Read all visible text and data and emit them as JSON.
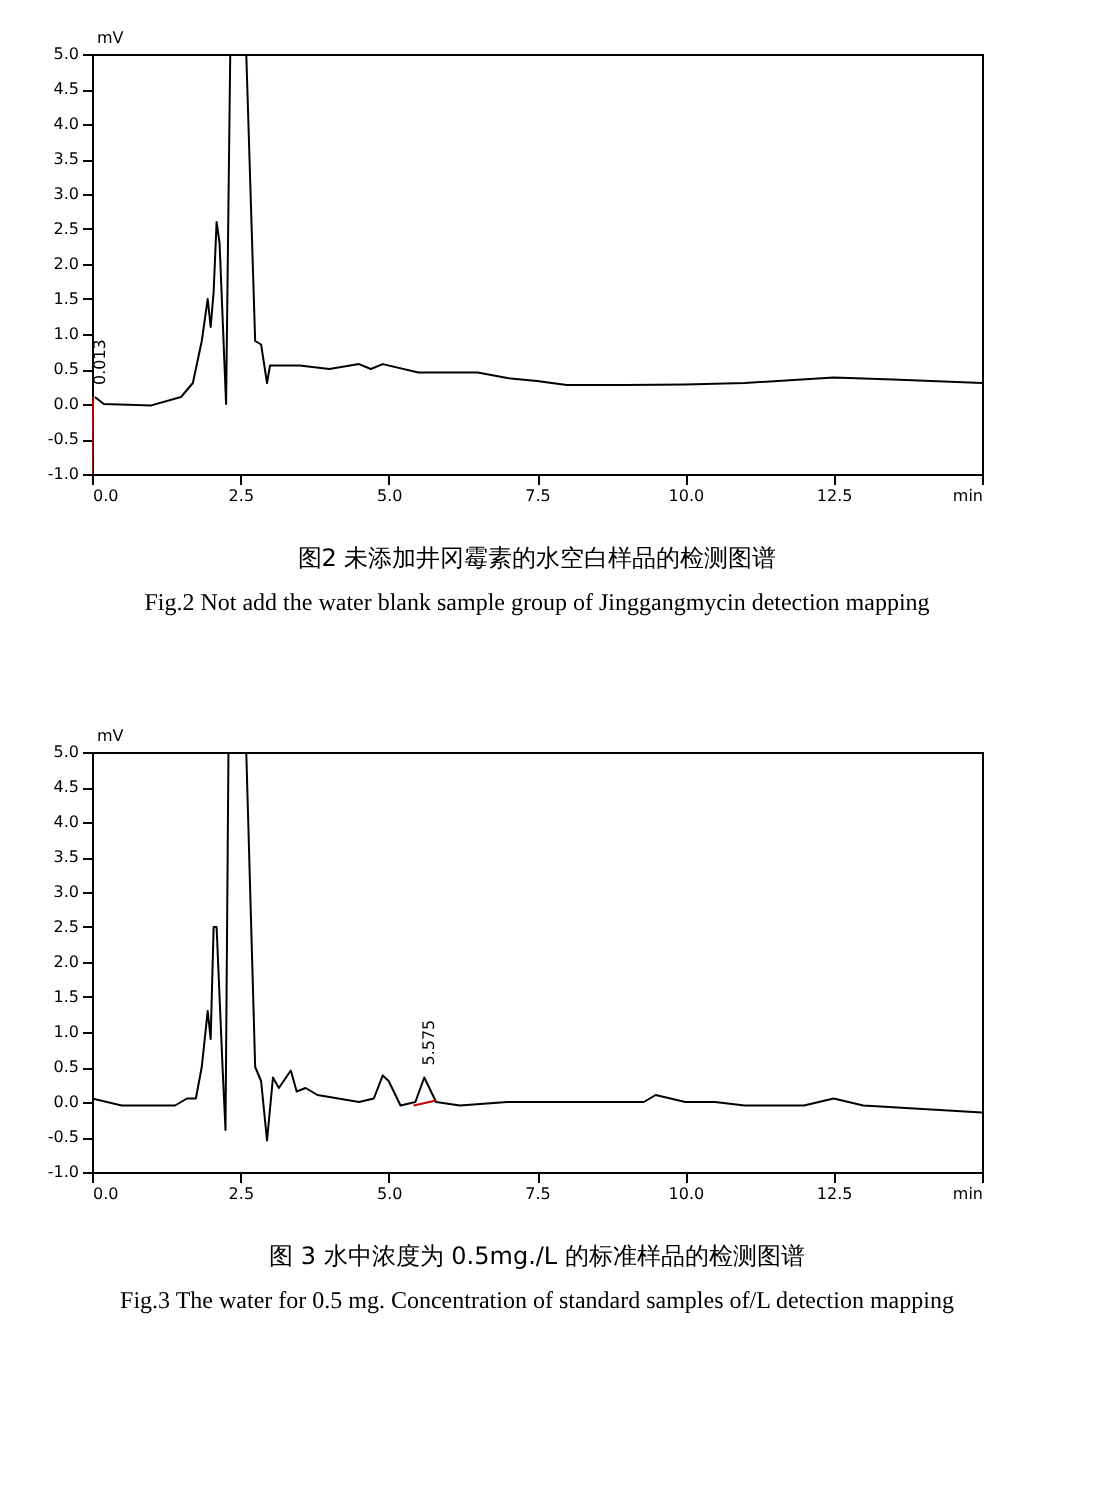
{
  "chart_data": [
    {
      "type": "line",
      "title": "图2  未添加井冈霉素的水空白样品的检测图谱",
      "subtitle": "Fig.2 Not add the water blank sample group of Jinggangmycin detection mapping",
      "ylabel": "mV",
      "xlim": [
        0,
        15
      ],
      "ylim": [
        -1,
        5
      ],
      "xticks": [
        {
          "value": 0,
          "label": "0.0"
        },
        2.5,
        {
          "value": 5,
          "label": "5.0"
        },
        7.5,
        {
          "value": 10,
          "label": "10.0"
        },
        12.5,
        {
          "value": 15,
          "label": "min"
        }
      ],
      "yticks": [
        {
          "value": -1,
          "label": "-1.0"
        },
        -0.5,
        {
          "value": 0,
          "label": "0.0"
        },
        0.5,
        {
          "value": 1,
          "label": "1.0"
        },
        1.5,
        {
          "value": 2,
          "label": "2.0"
        },
        2.5,
        {
          "value": 3,
          "label": "3.0"
        },
        3.5,
        {
          "value": 4,
          "label": "4.0"
        },
        4.5,
        {
          "value": 5,
          "label": "5.0"
        }
      ],
      "grid": false,
      "marker": "none",
      "line_style": "solid",
      "annotations": [
        {
          "text": "0.013",
          "x": 0.05,
          "y": 0.1
        }
      ],
      "series": [
        {
          "color": "#000000",
          "x": [
            0.05,
            0.2,
            1.0,
            1.5,
            1.7,
            1.85,
            1.95,
            2.0,
            2.05,
            2.1,
            2.15,
            2.26,
            2.33,
            2.6,
            2.75,
            2.85,
            2.95,
            3.0,
            3.5,
            4.0,
            4.5,
            4.7,
            4.9,
            5.5,
            6.5,
            7.0,
            7.5,
            8.0,
            9.0,
            10.0,
            11.0,
            12.5,
            13.5,
            15.0
          ],
          "values": [
            0.1,
            0.0,
            -0.02,
            0.1,
            0.3,
            0.9,
            1.5,
            1.1,
            1.6,
            2.6,
            2.3,
            0.0,
            5.0,
            5.0,
            0.9,
            0.85,
            0.3,
            0.55,
            0.55,
            0.5,
            0.57,
            0.5,
            0.57,
            0.45,
            0.45,
            0.37,
            0.33,
            0.27,
            0.27,
            0.28,
            0.3,
            0.38,
            0.35,
            0.3
          ]
        },
        {
          "color": "#c00000",
          "x": [
            0.0,
            0.02
          ],
          "values": [
            -1.0,
            0.1
          ]
        }
      ]
    },
    {
      "type": "line",
      "title": "图 3  水中浓度为 0.5mg./L 的标准样品的检测图谱",
      "subtitle": "Fig.3 The water for 0.5 mg. Concentration of standard samples of/L detection mapping",
      "ylabel": "mV",
      "xlim": [
        0,
        15
      ],
      "ylim": [
        -1,
        5
      ],
      "xticks": [
        {
          "value": 0,
          "label": "0.0"
        },
        2.5,
        {
          "value": 5,
          "label": "5.0"
        },
        7.5,
        {
          "value": 10,
          "label": "10.0"
        },
        12.5,
        {
          "value": 15,
          "label": "min"
        }
      ],
      "yticks": [
        {
          "value": -1,
          "label": "-1.0"
        },
        -0.5,
        {
          "value": 0,
          "label": "0.0"
        },
        0.5,
        {
          "value": 1,
          "label": "1.0"
        },
        1.5,
        {
          "value": 2,
          "label": "2.0"
        },
        2.5,
        {
          "value": 3,
          "label": "3.0"
        },
        3.5,
        {
          "value": 4,
          "label": "4.0"
        },
        4.5,
        {
          "value": 5,
          "label": "5.0"
        }
      ],
      "grid": false,
      "marker": "none",
      "line_style": "solid",
      "annotations": [
        {
          "text": "5.575",
          "x": 5.6,
          "y": 0.35
        }
      ],
      "series": [
        {
          "color": "#000000",
          "x": [
            0.0,
            0.5,
            1.4,
            1.6,
            1.75,
            1.85,
            1.95,
            2.0,
            2.05,
            2.1,
            2.2,
            2.25,
            2.3,
            2.6,
            2.75,
            2.85,
            2.95,
            3.05,
            3.15,
            3.35,
            3.45,
            3.6,
            3.8,
            4.5,
            4.75,
            4.9,
            5.0,
            5.2,
            5.45,
            5.6,
            5.8,
            6.2,
            7.0,
            8.0,
            9.3,
            9.5,
            10.0,
            10.5,
            11.0,
            12.0,
            12.5,
            13.0,
            14.0,
            15.0
          ],
          "values": [
            0.05,
            -0.05,
            -0.05,
            0.05,
            0.05,
            0.5,
            1.3,
            0.9,
            2.5,
            2.5,
            0.5,
            -0.4,
            5.0,
            5.0,
            0.5,
            0.3,
            -0.55,
            0.35,
            0.2,
            0.45,
            0.15,
            0.2,
            0.1,
            0.0,
            0.05,
            0.38,
            0.3,
            -0.05,
            0.0,
            0.35,
            0.0,
            -0.05,
            0.0,
            0.0,
            0.0,
            0.1,
            0.0,
            0.0,
            -0.05,
            -0.05,
            0.05,
            -0.05,
            -0.1,
            -0.15
          ]
        },
        {
          "color": "#c00000",
          "x": [
            5.42,
            5.8
          ],
          "values": [
            -0.05,
            0.02
          ]
        }
      ]
    }
  ]
}
